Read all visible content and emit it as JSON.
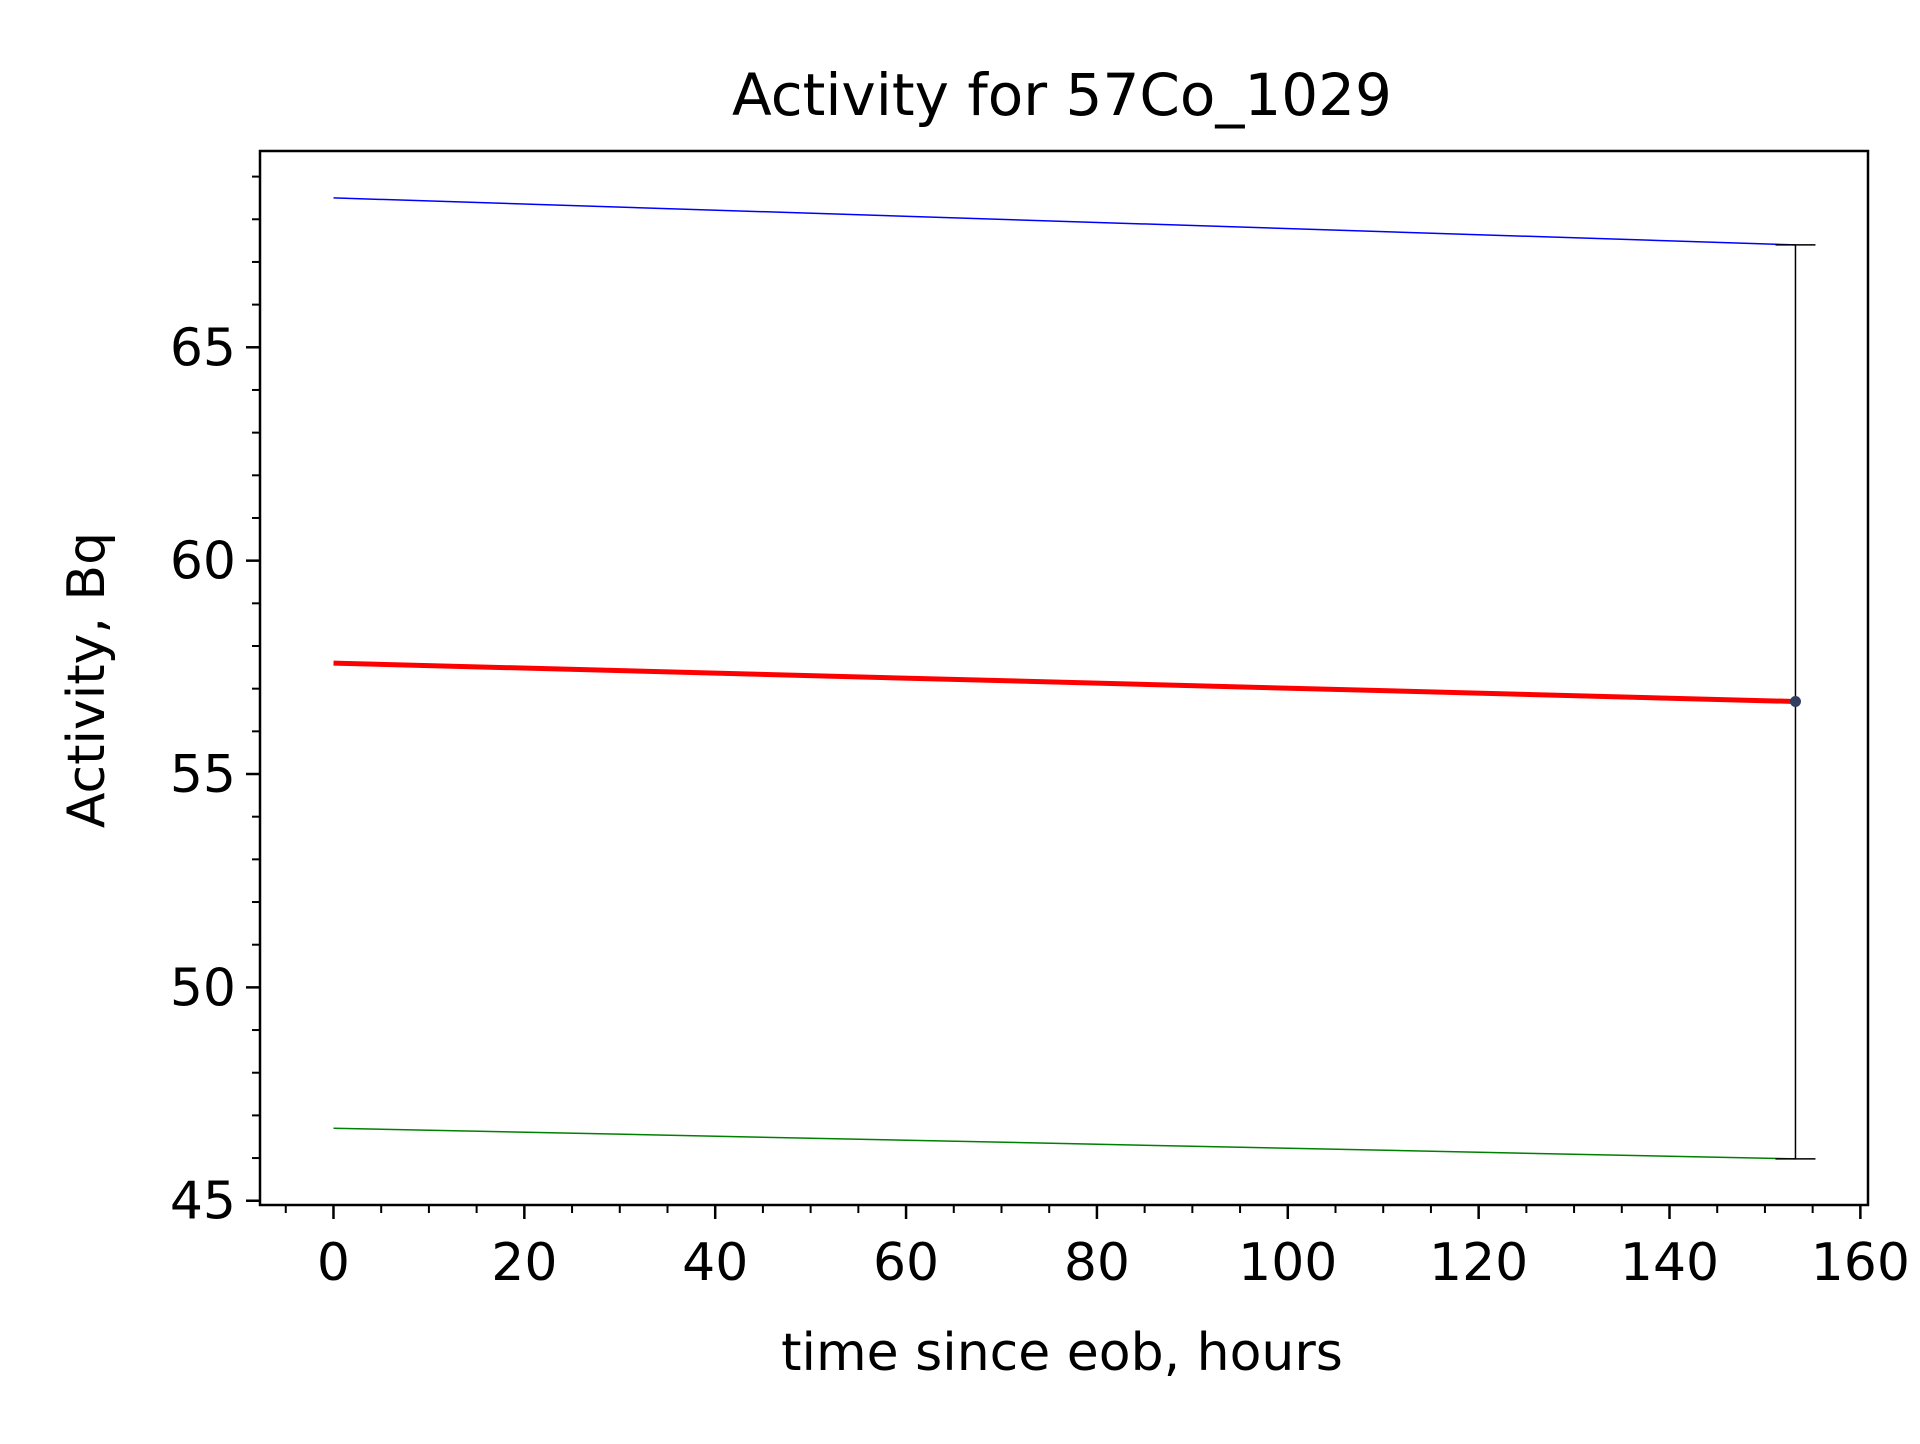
{
  "chart_data": {
    "type": "line",
    "title": "Activity for 57Co_1029",
    "xlabel": "time since eob, hours",
    "ylabel": "Activity, Bq",
    "xlim": [
      -7.7,
      160.8
    ],
    "ylim": [
      44.9,
      69.6
    ],
    "x_ticks": [
      0,
      20,
      40,
      60,
      80,
      100,
      120,
      140,
      160
    ],
    "y_ticks": [
      45,
      50,
      55,
      60,
      65
    ],
    "x_minor_step": 5,
    "y_minor_step": 1,
    "grid": false,
    "legend": "none",
    "series": [
      {
        "x": [
          0,
          153.2
        ],
        "y": [
          68.5,
          67.4
        ],
        "color": "#0000ff",
        "role": "upper"
      },
      {
        "x": [
          0,
          153.2
        ],
        "y": [
          57.6,
          56.7
        ],
        "color": "#ff0000",
        "role": "fit"
      },
      {
        "x": [
          0,
          153.2
        ],
        "y": [
          46.7,
          45.98
        ],
        "color": "#008000",
        "role": "lower"
      }
    ],
    "points": [
      {
        "x": 153.2,
        "y": 56.7,
        "yerr_low": 45.98,
        "yerr_high": 67.4,
        "color": "#2f3f5f"
      }
    ]
  }
}
